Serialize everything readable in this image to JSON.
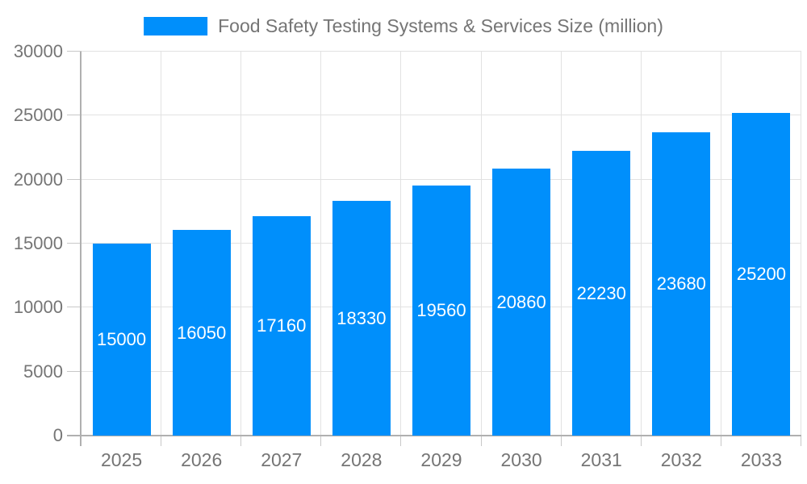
{
  "legend": {
    "label": "Food Safety Testing Systems & Services Size (million)",
    "swatch_color": "#008FFB"
  },
  "chart_data": {
    "type": "bar",
    "title": "Food Safety Testing Systems & Services Size (million)",
    "categories": [
      "2025",
      "2026",
      "2027",
      "2028",
      "2029",
      "2030",
      "2031",
      "2032",
      "2033"
    ],
    "values": [
      15000,
      16050,
      17160,
      18330,
      19560,
      20860,
      22230,
      23680,
      25200
    ],
    "value_labels": [
      "15000",
      "16050",
      "17160",
      "18330",
      "19560",
      "20860",
      "22230",
      "23680",
      "25200"
    ],
    "xlabel": "",
    "ylabel": "",
    "ylim": [
      0,
      30000
    ],
    "ytick_interval": 5000,
    "ytick_labels": [
      "0",
      "5000",
      "10000",
      "15000",
      "20000",
      "25000",
      "30000"
    ],
    "grid": true,
    "legend_position": "top-center",
    "bar_color": "#008FFB",
    "value_label_color": "#ffffff",
    "axis_text_color": "#757575",
    "gridline_color": "#e2e2e2",
    "axis_line_color": "#b0b0b0"
  }
}
